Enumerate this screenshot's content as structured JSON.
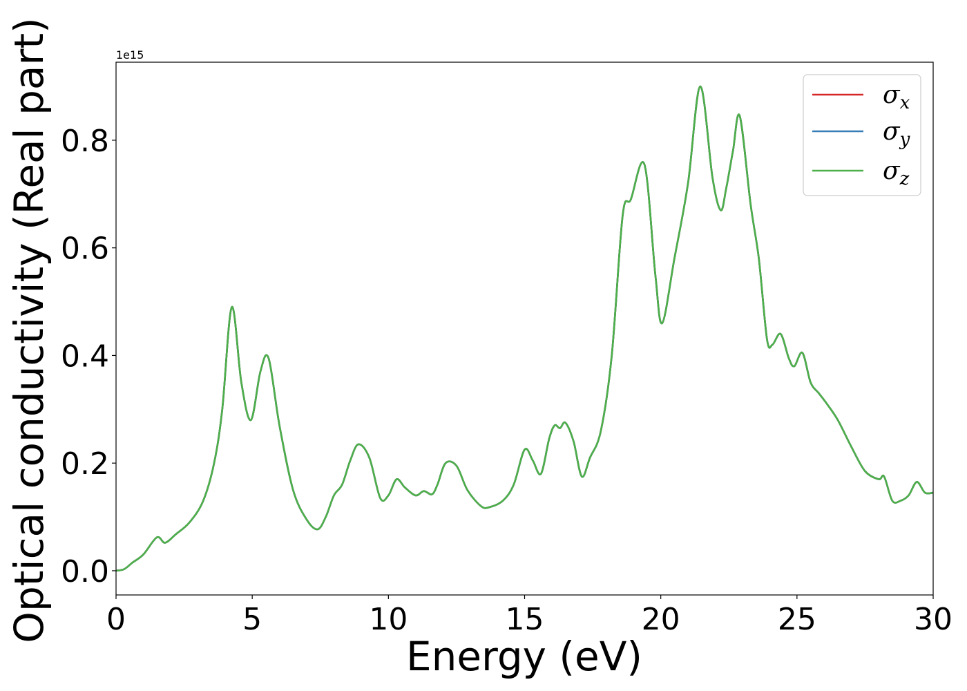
{
  "chart_data": {
    "type": "line",
    "title": "",
    "xlabel": "Energy (eV)",
    "ylabel": "Optical conductivity (Real part)",
    "y_offset_text": "1e15",
    "xlim": [
      0,
      30
    ],
    "ylim": [
      -0.045,
      0.945
    ],
    "x_ticks": [
      0,
      5,
      10,
      15,
      20,
      25,
      30
    ],
    "x_tick_labels": [
      "0",
      "5",
      "10",
      "15",
      "20",
      "25",
      "30"
    ],
    "y_ticks": [
      0.0,
      0.2,
      0.4,
      0.6,
      0.8
    ],
    "y_tick_labels": [
      "0.0",
      "0.2",
      "0.4",
      "0.6",
      "0.8"
    ],
    "grid": false,
    "legend_position": "top-right",
    "x": [
      0,
      0.3,
      0.6,
      1.0,
      1.5,
      1.8,
      2.2,
      2.7,
      3.2,
      3.6,
      3.9,
      4.25,
      4.6,
      4.95,
      5.3,
      5.6,
      6.0,
      6.5,
      7.0,
      7.4,
      7.7,
      8.0,
      8.3,
      8.6,
      8.9,
      9.3,
      9.7,
      10.0,
      10.3,
      10.6,
      11.0,
      11.3,
      11.6,
      11.8,
      12.1,
      12.5,
      12.9,
      13.4,
      13.7,
      14.2,
      14.6,
      15.0,
      15.3,
      15.6,
      15.9,
      16.1,
      16.3,
      16.5,
      16.8,
      17.1,
      17.4,
      17.8,
      18.2,
      18.6,
      18.9,
      19.4,
      19.8,
      20.05,
      20.5,
      21.0,
      21.45,
      21.9,
      22.2,
      22.4,
      22.65,
      22.9,
      23.3,
      23.6,
      23.9,
      24.1,
      24.4,
      24.7,
      24.9,
      25.2,
      25.5,
      25.8,
      26.1,
      26.5,
      27.0,
      27.5,
      28.0,
      28.2,
      28.5,
      28.8,
      29.1,
      29.4,
      29.7,
      30.0
    ],
    "series": [
      {
        "name": "σx",
        "color": "#d62728",
        "values": [
          0.0,
          0.003,
          0.015,
          0.03,
          0.062,
          0.052,
          0.068,
          0.09,
          0.13,
          0.2,
          0.3,
          0.49,
          0.35,
          0.28,
          0.37,
          0.395,
          0.27,
          0.15,
          0.095,
          0.077,
          0.1,
          0.14,
          0.16,
          0.205,
          0.235,
          0.21,
          0.135,
          0.14,
          0.17,
          0.155,
          0.14,
          0.148,
          0.142,
          0.16,
          0.2,
          0.195,
          0.15,
          0.12,
          0.118,
          0.13,
          0.16,
          0.225,
          0.205,
          0.18,
          0.245,
          0.27,
          0.265,
          0.275,
          0.24,
          0.175,
          0.21,
          0.26,
          0.4,
          0.66,
          0.69,
          0.755,
          0.55,
          0.46,
          0.58,
          0.72,
          0.9,
          0.73,
          0.67,
          0.71,
          0.78,
          0.845,
          0.68,
          0.58,
          0.43,
          0.42,
          0.44,
          0.395,
          0.38,
          0.405,
          0.35,
          0.33,
          0.31,
          0.28,
          0.23,
          0.185,
          0.17,
          0.175,
          0.13,
          0.13,
          0.14,
          0.165,
          0.145,
          0.145
        ]
      },
      {
        "name": "σy",
        "color": "#377eb8",
        "values": [
          0.0,
          0.003,
          0.015,
          0.03,
          0.062,
          0.052,
          0.068,
          0.09,
          0.13,
          0.2,
          0.3,
          0.49,
          0.35,
          0.28,
          0.37,
          0.395,
          0.27,
          0.15,
          0.095,
          0.077,
          0.1,
          0.14,
          0.16,
          0.205,
          0.235,
          0.21,
          0.135,
          0.14,
          0.17,
          0.155,
          0.14,
          0.148,
          0.142,
          0.16,
          0.2,
          0.195,
          0.15,
          0.12,
          0.118,
          0.13,
          0.16,
          0.225,
          0.205,
          0.18,
          0.245,
          0.27,
          0.265,
          0.275,
          0.24,
          0.175,
          0.21,
          0.26,
          0.4,
          0.66,
          0.69,
          0.755,
          0.55,
          0.46,
          0.58,
          0.72,
          0.9,
          0.73,
          0.67,
          0.71,
          0.78,
          0.845,
          0.68,
          0.58,
          0.43,
          0.42,
          0.44,
          0.395,
          0.38,
          0.405,
          0.35,
          0.33,
          0.31,
          0.28,
          0.23,
          0.185,
          0.17,
          0.175,
          0.13,
          0.13,
          0.14,
          0.165,
          0.145,
          0.145
        ]
      },
      {
        "name": "σz",
        "color": "#4daf4a",
        "values": [
          0.0,
          0.003,
          0.015,
          0.03,
          0.062,
          0.052,
          0.068,
          0.09,
          0.13,
          0.2,
          0.3,
          0.49,
          0.35,
          0.28,
          0.37,
          0.395,
          0.27,
          0.15,
          0.095,
          0.077,
          0.1,
          0.14,
          0.16,
          0.205,
          0.235,
          0.21,
          0.135,
          0.14,
          0.17,
          0.155,
          0.14,
          0.148,
          0.142,
          0.16,
          0.2,
          0.195,
          0.15,
          0.12,
          0.118,
          0.13,
          0.16,
          0.225,
          0.205,
          0.18,
          0.245,
          0.27,
          0.265,
          0.275,
          0.24,
          0.175,
          0.21,
          0.26,
          0.4,
          0.66,
          0.69,
          0.755,
          0.55,
          0.46,
          0.58,
          0.72,
          0.9,
          0.73,
          0.67,
          0.71,
          0.78,
          0.845,
          0.68,
          0.58,
          0.43,
          0.42,
          0.44,
          0.395,
          0.38,
          0.405,
          0.35,
          0.33,
          0.31,
          0.28,
          0.23,
          0.185,
          0.17,
          0.175,
          0.13,
          0.13,
          0.14,
          0.165,
          0.145,
          0.145
        ]
      }
    ],
    "legend": [
      {
        "symbol": "σ",
        "subscript": "x",
        "color": "#d62728"
      },
      {
        "symbol": "σ",
        "subscript": "y",
        "color": "#377eb8"
      },
      {
        "symbol": "σ",
        "subscript": "z",
        "color": "#4daf4a"
      }
    ]
  }
}
